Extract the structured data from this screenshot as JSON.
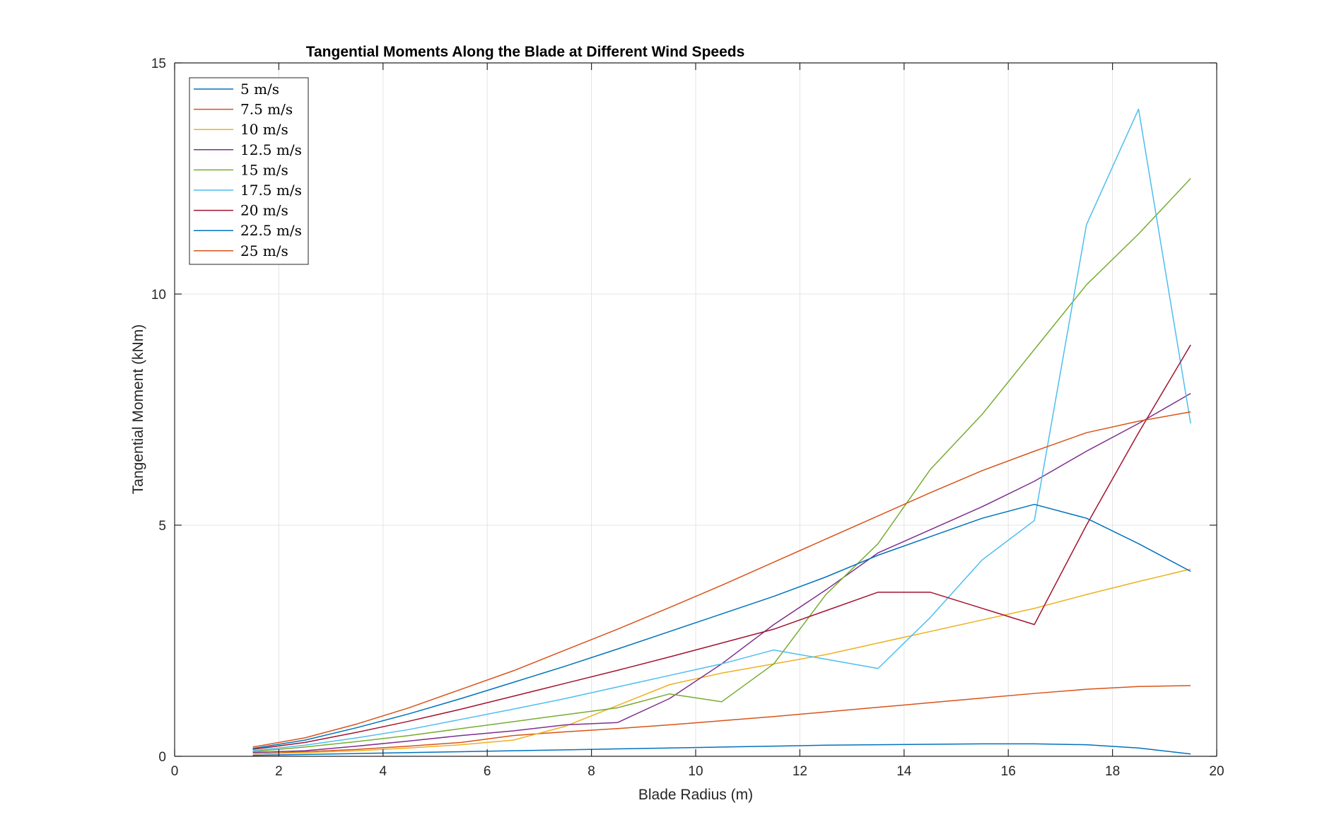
{
  "chart_data": {
    "type": "line",
    "title": "Tangential Moments Along the Blade at Different Wind Speeds",
    "xlabel": "Blade Radius (m)",
    "ylabel": "Tangential Moment (kNm)",
    "xlim": [
      0,
      20
    ],
    "ylim": [
      0,
      15
    ],
    "xticks": [
      "0",
      "2",
      "4",
      "6",
      "8",
      "10",
      "12",
      "14",
      "16",
      "18",
      "20"
    ],
    "yticks": [
      "0",
      "5",
      "10",
      "15"
    ],
    "grid": true,
    "legend_position": "top-left",
    "x": [
      1.5,
      2.5,
      3.5,
      4.5,
      5.5,
      6.5,
      7.5,
      8.5,
      9.5,
      10.5,
      11.5,
      12.5,
      13.5,
      14.5,
      15.5,
      16.5,
      17.5,
      18.5,
      19.5
    ],
    "series": [
      {
        "name": "5 m/s",
        "color": "#0072BD",
        "values": [
          0.02,
          0.04,
          0.06,
          0.08,
          0.1,
          0.12,
          0.14,
          0.16,
          0.18,
          0.2,
          0.22,
          0.24,
          0.25,
          0.26,
          0.27,
          0.27,
          0.25,
          0.18,
          0.05
        ]
      },
      {
        "name": "7.5 m/s",
        "color": "#D95319",
        "values": [
          0.05,
          0.1,
          0.15,
          0.22,
          0.3,
          0.45,
          0.53,
          0.6,
          0.68,
          0.77,
          0.86,
          0.96,
          1.06,
          1.16,
          1.26,
          1.36,
          1.45,
          1.51,
          1.53
        ]
      },
      {
        "name": "10 m/s",
        "color": "#EDB120",
        "values": [
          0.05,
          0.08,
          0.12,
          0.18,
          0.25,
          0.35,
          0.65,
          1.1,
          1.55,
          1.8,
          2.0,
          2.2,
          2.45,
          2.7,
          2.95,
          3.2,
          3.5,
          3.78,
          4.05
        ]
      },
      {
        "name": "12.5 m/s",
        "color": "#7E2F8E",
        "values": [
          0.08,
          0.12,
          0.22,
          0.33,
          0.45,
          0.55,
          0.68,
          0.73,
          1.25,
          2.0,
          2.85,
          3.6,
          4.4,
          4.9,
          5.4,
          5.95,
          6.6,
          7.2,
          7.85
        ]
      },
      {
        "name": "15 m/s",
        "color": "#77AC30",
        "values": [
          0.1,
          0.2,
          0.32,
          0.45,
          0.6,
          0.75,
          0.9,
          1.05,
          1.35,
          1.18,
          2.0,
          3.5,
          4.6,
          6.2,
          7.4,
          8.8,
          10.2,
          11.3,
          12.5
        ]
      },
      {
        "name": "17.5 m/s",
        "color": "#4DBEEE",
        "values": [
          0.12,
          0.24,
          0.4,
          0.58,
          0.8,
          1.02,
          1.25,
          1.5,
          1.75,
          2.0,
          2.3,
          2.1,
          1.9,
          3.0,
          4.25,
          5.1,
          11.5,
          14.0,
          7.2
        ]
      },
      {
        "name": "20 m/s",
        "color": "#A2142F",
        "values": [
          0.15,
          0.3,
          0.52,
          0.76,
          1.02,
          1.3,
          1.58,
          1.86,
          2.15,
          2.45,
          2.75,
          3.15,
          3.55,
          3.55,
          3.2,
          2.85,
          5.0,
          7.0,
          8.9
        ]
      },
      {
        "name": "22.5 m/s",
        "color": "#0072BD",
        "values": [
          0.17,
          0.35,
          0.62,
          0.92,
          1.25,
          1.6,
          1.95,
          2.32,
          2.7,
          3.08,
          3.46,
          3.88,
          4.35,
          4.75,
          5.15,
          5.45,
          5.15,
          4.6,
          4.0
        ]
      },
      {
        "name": "25 m/s",
        "color": "#D95319",
        "values": [
          0.2,
          0.4,
          0.7,
          1.05,
          1.45,
          1.85,
          2.3,
          2.75,
          3.22,
          3.7,
          4.2,
          4.7,
          5.2,
          5.7,
          6.18,
          6.6,
          7.0,
          7.25,
          7.45
        ]
      }
    ]
  }
}
